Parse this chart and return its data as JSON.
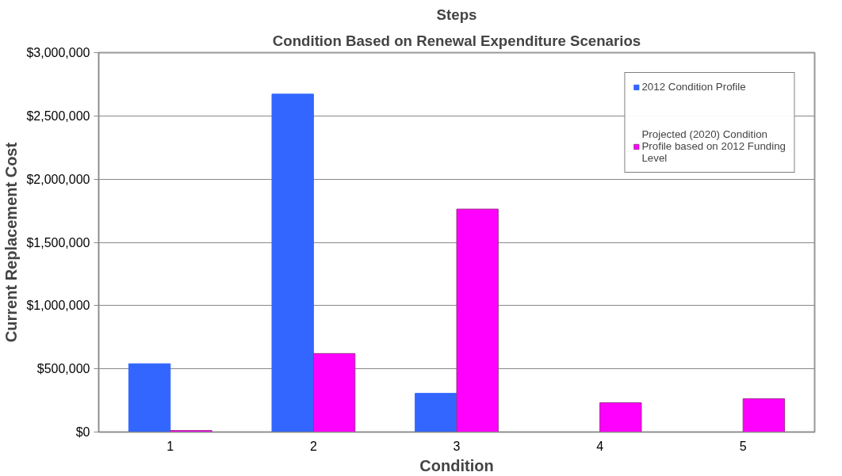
{
  "chart_data": {
    "type": "bar",
    "title": "Steps",
    "subtitle": "Condition Based on Renewal Expenditure Scenarios",
    "xlabel": "Condition",
    "ylabel": "Current Replacement Cost",
    "categories": [
      "1",
      "2",
      "3",
      "4",
      "5"
    ],
    "series": [
      {
        "name": "2012 Condition Profile",
        "color": "#3366ff",
        "values": [
          540000,
          2672000,
          306000,
          0,
          0
        ]
      },
      {
        "name": "Projected (2020) Condition Profile based on 2012 Funding Level",
        "color": "#ff00ff",
        "values": [
          12000,
          621000,
          1763000,
          232000,
          264000
        ]
      }
    ],
    "ylim": [
      0,
      3000000
    ],
    "yticks": [
      {
        "value": 0,
        "label": "$0"
      },
      {
        "value": 500000,
        "label": "$500,000"
      },
      {
        "value": 1000000,
        "label": "$1,000,000"
      },
      {
        "value": 1500000,
        "label": "$1,500,000"
      },
      {
        "value": 2000000,
        "label": "$2,000,000"
      },
      {
        "value": 2500000,
        "label": "$2,500,000"
      },
      {
        "value": 3000000,
        "label": "$3,000,000"
      }
    ],
    "grid": "y",
    "legend": "top right"
  }
}
